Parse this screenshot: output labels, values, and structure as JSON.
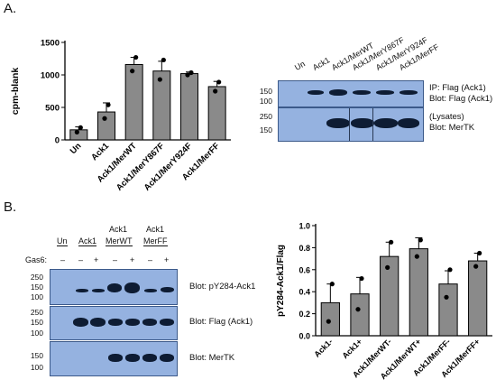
{
  "panel_a": {
    "label": "A.",
    "chart_data": {
      "type": "bar",
      "categories": [
        "Un",
        "Ack1",
        "Ack1/MerWT",
        "Ack1/MerY867F",
        "Ack1/MerY924F",
        "Ack1/MerFF"
      ],
      "values": [
        155,
        430,
        1160,
        1060,
        1020,
        820
      ],
      "errors": [
        45,
        140,
        110,
        150,
        25,
        80
      ],
      "points": [
        [
          120,
          190
        ],
        [
          330,
          540
        ],
        [
          1060,
          1270
        ],
        [
          930,
          1230
        ],
        [
          1000,
          1035
        ],
        [
          750,
          890
        ]
      ],
      "ylabel": "cpm-blank",
      "ylim": [
        0,
        1500
      ],
      "yticks": [
        0,
        500,
        1000,
        1500
      ],
      "grid": false
    },
    "blot": {
      "lanes": [
        "Un",
        "Ack1",
        "Ack1/MerWT",
        "Ack1/MerY867F",
        "Ack1/MerY924F",
        "Ack1/MerFF"
      ],
      "top": {
        "mw": [
          "150",
          "100"
        ],
        "label_1": "IP: Flag (Ack1)",
        "label_2": "Blot: Flag (Ack1)"
      },
      "bottom": {
        "mw": [
          "250",
          "150"
        ],
        "label_1": "(Lysates)",
        "label_2": "Blot: MerTK"
      }
    }
  },
  "panel_b": {
    "label": "B.",
    "blot": {
      "groups": [
        "Un",
        "Ack1",
        "Ack1",
        "MerWT",
        "Ack1",
        "MerFF"
      ],
      "gas6_label": "Gas6:",
      "gas6_signs": [
        "–",
        "–",
        "+",
        "–",
        "+",
        "–",
        "+"
      ],
      "panels": [
        {
          "mw": [
            "250",
            "150",
            "100"
          ],
          "label": "Blot: pY284-Ack1"
        },
        {
          "mw": [
            "250",
            "150",
            "100"
          ],
          "label": "Blot: Flag (Ack1)"
        },
        {
          "mw": [
            "150",
            "100"
          ],
          "label": "Blot: MerTK"
        }
      ]
    },
    "chart_data": {
      "type": "bar",
      "categories": [
        "Ack1-",
        "Ack1+",
        "Ack1/MerWT-",
        "Ack1/MerWT+",
        "Ack1/MerFF-",
        "Ack1/MerFF+"
      ],
      "values": [
        0.3,
        0.38,
        0.72,
        0.79,
        0.47,
        0.68
      ],
      "errors": [
        0.17,
        0.15,
        0.13,
        0.1,
        0.12,
        0.07
      ],
      "points": [
        [
          0.13,
          0.47
        ],
        [
          0.24,
          0.52
        ],
        [
          0.62,
          0.85
        ],
        [
          0.72,
          0.87
        ],
        [
          0.35,
          0.6
        ],
        [
          0.63,
          0.75
        ]
      ],
      "ylabel": "pY284-Ack1/Flag",
      "ylim": [
        0,
        1.0
      ],
      "yticks": [
        0.0,
        0.2,
        0.4,
        0.6,
        0.8,
        1.0
      ],
      "grid": false
    }
  }
}
